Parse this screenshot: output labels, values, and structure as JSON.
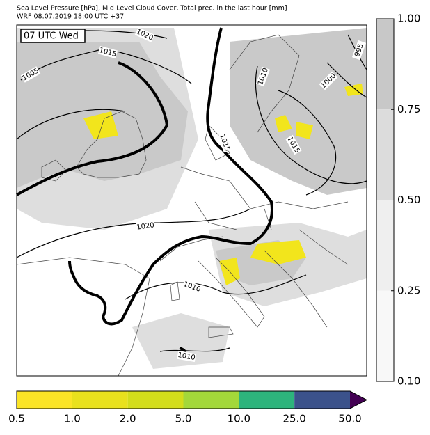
{
  "header": {
    "line1": "Sea Level Pressure [hPa], Mid-Level Cloud Cover, Total prec. in the last hour [mm]",
    "line2": "WRF 08.07.2019 18:00 UTC +37"
  },
  "map": {
    "time_label": "07 UTC Wed",
    "contour_labels": [
      "1020",
      "1015",
      "1005",
      "995",
      "1000",
      "1010",
      "1015",
      "1015",
      "1020",
      "1010",
      "1010"
    ]
  },
  "cloud_colorbar": {
    "labels": [
      "1.00",
      "0.75",
      "0.50",
      "0.25",
      "0.10"
    ],
    "colors": [
      "#c8c8c8",
      "#dcdcdc",
      "#efefef",
      "#f8f8f8"
    ]
  },
  "precip_colorbar": {
    "labels": [
      "0.5",
      "1.0",
      "2.0",
      "5.0",
      "10.0",
      "25.0",
      "50.0"
    ],
    "colors": [
      "#fbe426",
      "#e9e11d",
      "#d3dd1b",
      "#a3d83a",
      "#2db47c",
      "#3b528b"
    ],
    "extend_color": "#440154"
  }
}
